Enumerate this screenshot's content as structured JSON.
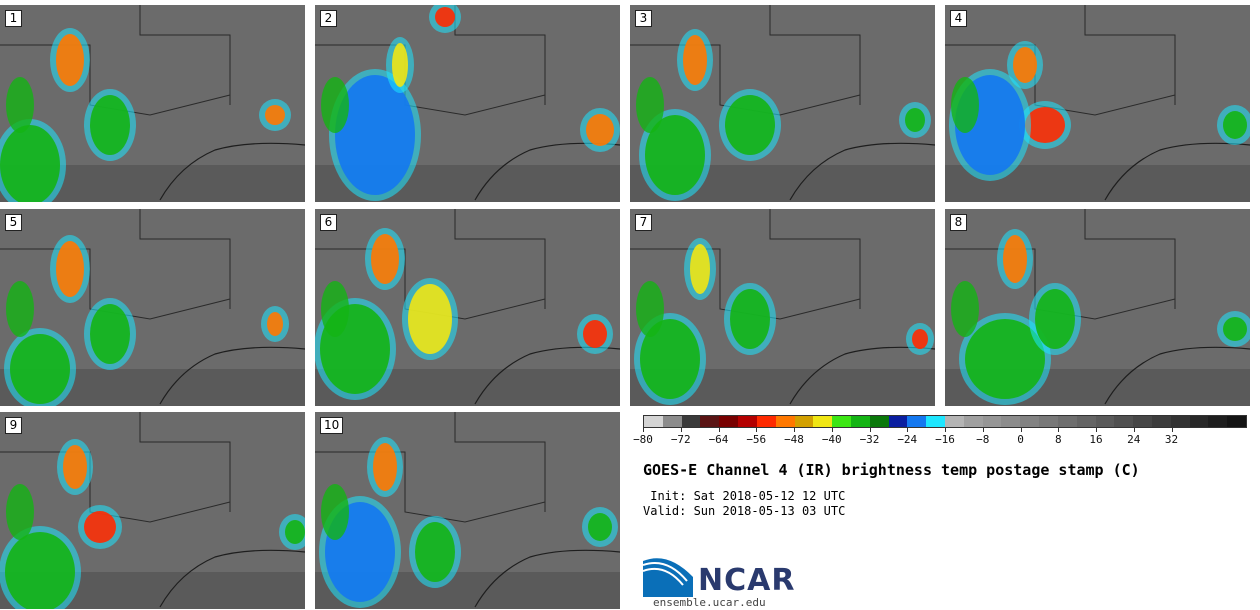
{
  "panels": [
    {
      "label": "1"
    },
    {
      "label": "2"
    },
    {
      "label": "3"
    },
    {
      "label": "4"
    },
    {
      "label": "5"
    },
    {
      "label": "6"
    },
    {
      "label": "7"
    },
    {
      "label": "8"
    },
    {
      "label": "9"
    },
    {
      "label": "10"
    }
  ],
  "colorbar": {
    "colors": [
      "#d4d4d4",
      "#8c8c8c",
      "#3a3a3a",
      "#5a1414",
      "#780000",
      "#b40000",
      "#ff2a00",
      "#ff7800",
      "#d2a000",
      "#f0e614",
      "#3ce614",
      "#14b414",
      "#0a780a",
      "#0a1ea0",
      "#1478f0",
      "#1ee6ff",
      "#b4b4b4",
      "#a0a0a0",
      "#969696",
      "#8c8c8c",
      "#828282",
      "#787878",
      "#6e6e6e",
      "#646464",
      "#5a5a5a",
      "#505050",
      "#464646",
      "#3c3c3c",
      "#323232",
      "#282828",
      "#1e1e1e",
      "#141414"
    ],
    "tick_labels": [
      "−80",
      "−72",
      "−64",
      "−56",
      "−48",
      "−40",
      "−32",
      "−24",
      "−16",
      "−8",
      "0",
      "8",
      "16",
      "24",
      "32"
    ]
  },
  "title": "GOES-E Channel 4 (IR) brightness temp postage stamp (C)",
  "init": " Init: Sat 2018-05-12 12 UTC",
  "valid": "Valid: Sun 2018-05-13 03 UTC",
  "logo_text": "NCAR",
  "url": "ensemble.ucar.edu",
  "colors": {
    "background": "#ffffff",
    "panel": "#6a6a6a",
    "logo_blue": "#2a3a6e"
  }
}
